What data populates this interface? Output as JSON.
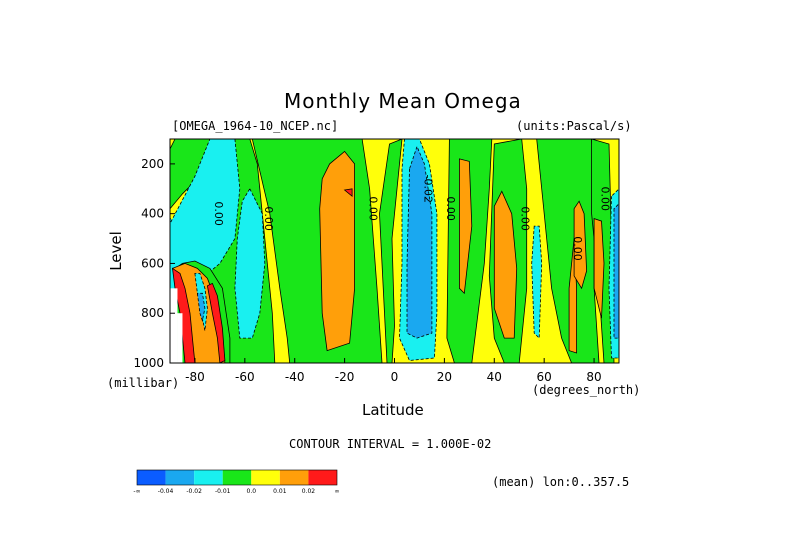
{
  "figure": {
    "title": "Monthly Mean Omega",
    "file_label": "[OMEGA_1964-10_NCEP.nc]",
    "units_label": "(units:Pascal/s)",
    "contour_interval": "CONTOUR INTERVAL = 1.000E-02",
    "mean_note": "(mean) lon:0..357.5"
  },
  "chart_data": {
    "type": "heatmap",
    "title": "Monthly Mean Omega",
    "subtitle": "[OMEGA_1964-10_NCEP.nc]",
    "units": "(units:Pascal/s)",
    "xlabel": "Latitude",
    "x_units": "(degrees_north)",
    "ylabel": "Level",
    "y_units": "(millibar)",
    "xlim": [
      -90,
      90
    ],
    "ylim": [
      1000,
      100
    ],
    "x_ticks": [
      -80,
      -60,
      -40,
      -20,
      0,
      20,
      40,
      60,
      80
    ],
    "y_ticks": [
      200,
      400,
      600,
      800,
      1000
    ],
    "colorbar": {
      "labels": [
        "-∞",
        "-0.04",
        "-0.02",
        "-0.01",
        "0.0",
        "0.01",
        "0.02",
        "∞"
      ],
      "colors": [
        "#0a5cff",
        "#1aa8f0",
        "#19f0f0",
        "#19e619",
        "#ffff0a",
        "#ff9f0a",
        "#ff1a1a"
      ]
    },
    "contour_labels": [
      {
        "text": "0.00",
        "lat": -72,
        "lev": 400
      },
      {
        "text": "0.00",
        "lat": -52,
        "lev": 420
      },
      {
        "text": "0.00",
        "lat": -10,
        "lev": 380
      },
      {
        "text": "-0.02",
        "lat": 12,
        "lev": 300
      },
      {
        "text": "0.00",
        "lat": 21,
        "lev": 380
      },
      {
        "text": "0.00",
        "lat": 51,
        "lev": 420
      },
      {
        "text": "0.00",
        "lat": 72,
        "lev": 540
      },
      {
        "text": "0.00",
        "lat": 83,
        "lev": 340
      }
    ],
    "regions": [
      {
        "level": "0.0",
        "shape": "rect",
        "lat": [
          -90,
          90
        ],
        "lev": [
          100,
          1000
        ]
      },
      {
        "level": "0.0",
        "shape": "poly",
        "pts": [
          [
            -90,
            380
          ],
          [
            -85,
            320
          ],
          [
            -79,
            260
          ],
          [
            -74,
            200
          ],
          [
            -72,
            100
          ],
          [
            -88,
            100
          ],
          [
            -90,
            140
          ]
        ]
      },
      {
        "level": "-0.01",
        "shape": "poly",
        "pts": [
          [
            -78,
            1000
          ],
          [
            -81,
            620
          ],
          [
            -84,
            520
          ],
          [
            -88,
            430
          ],
          [
            -90,
            420
          ],
          [
            -90,
            1000
          ]
        ]
      },
      {
        "level": "-0.01",
        "shape": "poly",
        "pts": [
          [
            -58,
            300
          ],
          [
            -53,
            400
          ],
          [
            -52,
            600
          ],
          [
            -54,
            800
          ],
          [
            -56,
            920
          ],
          [
            -62,
            900
          ],
          [
            -64,
            700
          ],
          [
            -63,
            500
          ],
          [
            -61,
            350
          ]
        ]
      },
      {
        "level": "0.0",
        "shape": "poly",
        "pts": [
          [
            -58,
            100
          ],
          [
            -55,
            200
          ],
          [
            -52,
            500
          ],
          [
            -49,
            800
          ],
          [
            -48,
            1000
          ],
          [
            -90,
            1000
          ],
          [
            -90,
            700
          ],
          [
            -80,
            600
          ],
          [
            -70,
            500
          ],
          [
            -66,
            300
          ],
          [
            -64,
            100
          ]
        ]
      },
      {
        "level": "-0.01",
        "shape": "poly",
        "pts": [
          [
            -64,
            100
          ],
          [
            -62,
            300
          ],
          [
            -64,
            500
          ],
          [
            -70,
            600
          ],
          [
            -82,
            700
          ],
          [
            -90,
            720
          ],
          [
            -90,
            440
          ],
          [
            -80,
            250
          ],
          [
            -74,
            100
          ]
        ]
      },
      {
        "level": "-0.01",
        "shape": "poly",
        "pts": [
          [
            -58,
            300
          ],
          [
            -53,
            400
          ],
          [
            -52,
            600
          ],
          [
            -54,
            800
          ],
          [
            -57,
            900
          ],
          [
            -62,
            900
          ],
          [
            -64,
            700
          ],
          [
            -63,
            500
          ],
          [
            -61,
            350
          ]
        ]
      },
      {
        "level": "0.0",
        "shape": "poly",
        "pts": [
          [
            -57,
            100
          ],
          [
            -50,
            400
          ],
          [
            -46,
            700
          ],
          [
            -43,
            900
          ],
          [
            -42,
            1000
          ],
          [
            -5,
            1000
          ],
          [
            -7,
            700
          ],
          [
            -10,
            300
          ],
          [
            -13,
            100
          ]
        ]
      },
      {
        "level": "0.01",
        "shape": "poly",
        "pts": [
          [
            -30,
            380
          ],
          [
            -29,
            800
          ],
          [
            -27,
            950
          ],
          [
            -18,
            920
          ],
          [
            -16,
            700
          ],
          [
            -16,
            200
          ],
          [
            -20,
            150
          ],
          [
            -26,
            200
          ],
          [
            -29,
            260
          ]
        ]
      },
      {
        "level": "0.02",
        "shape": "poly",
        "pts": [
          [
            -20,
            305
          ],
          [
            -17,
            300
          ],
          [
            -17,
            330
          ]
        ]
      },
      {
        "level": "0.0",
        "shape": "poly",
        "pts": [
          [
            -2,
            120
          ],
          [
            -6,
            400
          ],
          [
            -4,
            800
          ],
          [
            -3,
            1000
          ],
          [
            -1,
            1000
          ],
          [
            0,
            850
          ],
          [
            -1,
            500
          ],
          [
            1,
            300
          ],
          [
            3,
            100
          ]
        ]
      },
      {
        "level": "-0.01",
        "shape": "poly",
        "pts": [
          [
            3,
            220
          ],
          [
            3,
            600
          ],
          [
            2,
            900
          ],
          [
            6,
            990
          ],
          [
            16,
            980
          ],
          [
            17,
            800
          ],
          [
            17,
            400
          ],
          [
            14,
            200
          ],
          [
            10,
            100
          ],
          [
            4,
            100
          ]
        ]
      },
      {
        "level": "-0.02",
        "shape": "poly",
        "pts": [
          [
            6,
            220
          ],
          [
            5,
            600
          ],
          [
            5,
            880
          ],
          [
            9,
            900
          ],
          [
            15,
            880
          ],
          [
            15,
            400
          ],
          [
            12,
            200
          ],
          [
            9,
            130
          ]
        ]
      },
      {
        "level": "0.0",
        "shape": "poly",
        "pts": [
          [
            22,
            100
          ],
          [
            21,
            900
          ],
          [
            24,
            1000
          ],
          [
            31,
            1000
          ],
          [
            36,
            600
          ],
          [
            38,
            300
          ],
          [
            39,
            100
          ]
        ]
      },
      {
        "level": "0.01",
        "shape": "poly",
        "pts": [
          [
            26,
            180
          ],
          [
            26,
            700
          ],
          [
            28,
            720
          ],
          [
            31,
            450
          ],
          [
            30,
            190
          ]
        ]
      },
      {
        "level": "0.0",
        "shape": "poly",
        "pts": [
          [
            40,
            120
          ],
          [
            38,
            650
          ],
          [
            40,
            900
          ],
          [
            44,
            1000
          ],
          [
            50,
            1000
          ],
          [
            53,
            700
          ],
          [
            53,
            300
          ],
          [
            51,
            100
          ]
        ]
      },
      {
        "level": "0.01",
        "shape": "poly",
        "pts": [
          [
            40,
            370
          ],
          [
            40,
            780
          ],
          [
            44,
            900
          ],
          [
            48,
            900
          ],
          [
            49,
            620
          ],
          [
            47,
            400
          ],
          [
            43,
            310
          ]
        ]
      },
      {
        "level": "-0.01",
        "shape": "poly",
        "pts": [
          [
            56,
            450
          ],
          [
            55,
            600
          ],
          [
            56,
            880
          ],
          [
            58,
            900
          ],
          [
            59,
            600
          ],
          [
            58,
            450
          ]
        ]
      },
      {
        "level": "0.0",
        "shape": "poly",
        "pts": [
          [
            57,
            100
          ],
          [
            60,
            400
          ],
          [
            63,
            700
          ],
          [
            67,
            900
          ],
          [
            71,
            1000
          ],
          [
            82,
            1000
          ],
          [
            80,
            700
          ],
          [
            80,
            300
          ],
          [
            79,
            100
          ]
        ]
      },
      {
        "level": "0.01",
        "shape": "poly",
        "pts": [
          [
            70,
            700
          ],
          [
            70,
            950
          ],
          [
            73,
            960
          ],
          [
            73,
            700
          ],
          [
            72,
            500
          ]
        ]
      },
      {
        "level": "0.01",
        "shape": "poly",
        "pts": [
          [
            72,
            380
          ],
          [
            72,
            650
          ],
          [
            75,
            700
          ],
          [
            77,
            630
          ],
          [
            76,
            400
          ],
          [
            74,
            350
          ]
        ]
      },
      {
        "level": "0.0",
        "shape": "poly",
        "pts": [
          [
            79,
            100
          ],
          [
            79,
            400
          ],
          [
            82,
            700
          ],
          [
            84,
            1000
          ],
          [
            88,
            1000
          ],
          [
            87,
            500
          ],
          [
            86,
            120
          ]
        ]
      },
      {
        "level": "0.01",
        "shape": "poly",
        "pts": [
          [
            80,
            420
          ],
          [
            80,
            700
          ],
          [
            83,
            820
          ],
          [
            84,
            600
          ],
          [
            83,
            430
          ]
        ]
      },
      {
        "level": "-0.01",
        "shape": "poly",
        "pts": [
          [
            87,
            330
          ],
          [
            86,
            700
          ],
          [
            87,
            980
          ],
          [
            90,
            980
          ],
          [
            90,
            300
          ]
        ]
      },
      {
        "level": "-0.02",
        "shape": "poly",
        "pts": [
          [
            88,
            380
          ],
          [
            88,
            900
          ],
          [
            90,
            900
          ],
          [
            90,
            360
          ]
        ]
      },
      {
        "level": "0.0",
        "shape": "poly",
        "pts": [
          [
            -88,
            620
          ],
          [
            -87,
            720
          ],
          [
            -85,
            800
          ],
          [
            -82,
            900
          ],
          [
            -78,
            1000
          ],
          [
            -66,
            1000
          ],
          [
            -66,
            900
          ],
          [
            -69,
            700
          ],
          [
            -74,
            620
          ],
          [
            -80,
            590
          ],
          [
            -85,
            600
          ]
        ]
      },
      {
        "level": "0.01",
        "shape": "poly",
        "pts": [
          [
            -89,
            620
          ],
          [
            -87,
            700
          ],
          [
            -85,
            800
          ],
          [
            -83,
            900
          ],
          [
            -81,
            1000
          ],
          [
            -68,
            1000
          ],
          [
            -69,
            880
          ],
          [
            -72,
            740
          ],
          [
            -75,
            660
          ],
          [
            -79,
            620
          ],
          [
            -84,
            600
          ]
        ]
      },
      {
        "level": "0.02",
        "shape": "poly",
        "pts": [
          [
            -89,
            620
          ],
          [
            -88,
            700
          ],
          [
            -86,
            800
          ],
          [
            -85,
            900
          ],
          [
            -84,
            1000
          ],
          [
            -80,
            1000
          ],
          [
            -81,
            900
          ],
          [
            -82,
            800
          ],
          [
            -84,
            700
          ],
          [
            -86,
            640
          ]
        ]
      },
      {
        "level": "0.02",
        "shape": "poly",
        "pts": [
          [
            -75,
            690
          ],
          [
            -73,
            800
          ],
          [
            -71,
            900
          ],
          [
            -70,
            1000
          ],
          [
            -68,
            990
          ],
          [
            -69,
            860
          ],
          [
            -71,
            730
          ],
          [
            -73,
            680
          ]
        ]
      },
      {
        "level": "-0.01",
        "shape": "poly",
        "pts": [
          [
            -80,
            640
          ],
          [
            -79,
            720
          ],
          [
            -77,
            820
          ],
          [
            -76,
            870
          ],
          [
            -75,
            780
          ],
          [
            -76,
            700
          ],
          [
            -78,
            640
          ]
        ]
      },
      {
        "level": "-0.02",
        "shape": "poly",
        "pts": [
          [
            -79,
            720
          ],
          [
            -78,
            800
          ],
          [
            -77,
            830
          ],
          [
            -76,
            780
          ],
          [
            -77,
            720
          ]
        ]
      }
    ],
    "missing": [
      {
        "lat": [
          -90,
          -87
        ],
        "lev": [
          700,
          1000
        ]
      },
      {
        "lat": [
          -87,
          -85
        ],
        "lev": [
          800,
          1000
        ]
      }
    ]
  }
}
